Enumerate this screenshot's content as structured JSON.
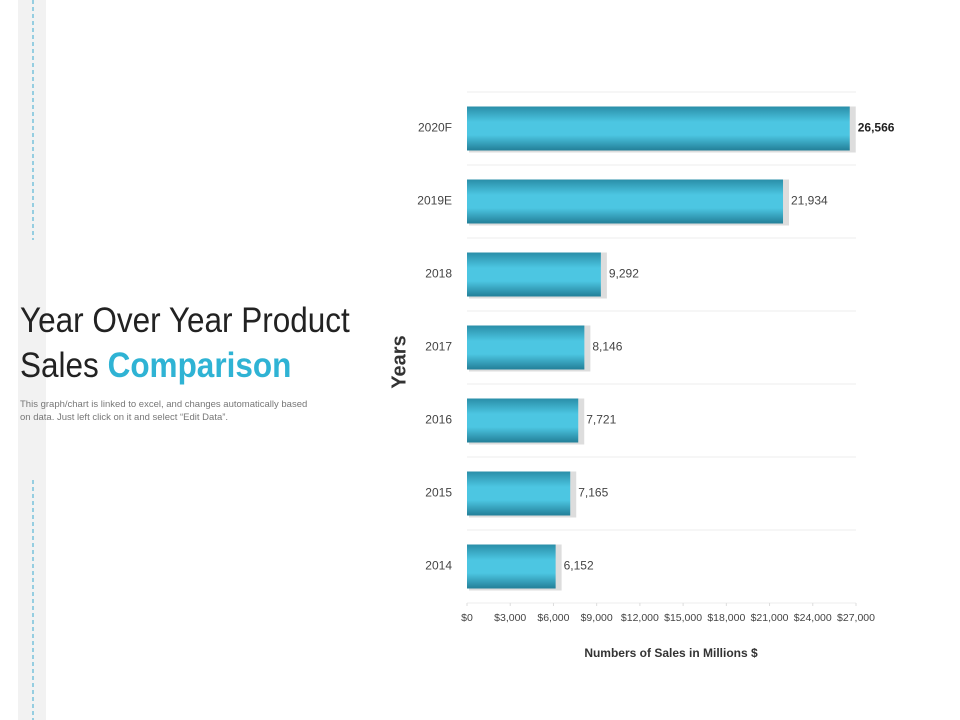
{
  "header": {
    "title": "Year Over Year Product Sales",
    "title_highlight": "Comparison",
    "description": "This graph/chart is linked to excel, and changes automatically based on data. Just left click on it and select “Edit Data”."
  },
  "chart_data": {
    "type": "bar",
    "orientation": "horizontal",
    "categories": [
      "2020F",
      "2019E",
      "2018",
      "2017",
      "2016",
      "2015",
      "2014"
    ],
    "values": [
      26566,
      21934,
      9292,
      8146,
      7721,
      7165,
      6152
    ],
    "value_labels": [
      "26,566",
      "21,934",
      "9,292",
      "8,146",
      "7,721",
      "7,165",
      "6,152"
    ],
    "color": "#4cc6e2",
    "xlim": [
      0,
      27000
    ],
    "xticks": [
      {
        "value": 0,
        "label": "$0"
      },
      {
        "value": 3000,
        "label": "$3,000"
      },
      {
        "value": 6000,
        "label": "$6,000"
      },
      {
        "value": 9000,
        "label": "$9,000"
      },
      {
        "value": 12000,
        "label": "$12,000"
      },
      {
        "value": 15000,
        "label": "$15,000"
      },
      {
        "value": 18000,
        "label": "$18,000"
      },
      {
        "value": 21000,
        "label": "$21,000"
      },
      {
        "value": 24000,
        "label": "$24,000"
      },
      {
        "value": 27000,
        "label": "$27,000"
      }
    ],
    "x_label": "Numbers of Sales in Millions $",
    "y_label": "Years"
  }
}
